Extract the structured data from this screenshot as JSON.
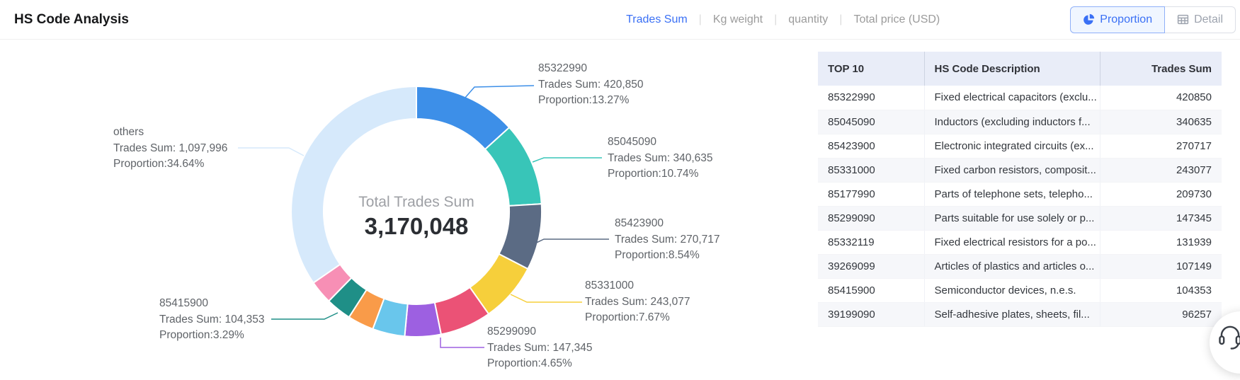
{
  "header": {
    "title": "HS Code Analysis",
    "metrics": [
      {
        "label": "Trades Sum",
        "active": true
      },
      {
        "label": "Kg weight",
        "active": false
      },
      {
        "label": "quantity",
        "active": false
      },
      {
        "label": "Total price (USD)",
        "active": false
      }
    ],
    "view_toggle": {
      "proportion_label": "Proportion",
      "detail_label": "Detail"
    }
  },
  "colors": {
    "accent_blue": "#3A70F5",
    "proportion_btn_bg": "#F0F6FF",
    "proportion_btn_border": "#8FB0F8",
    "inactive_gray": "#9B9B9B",
    "table_header_bg": "#E9EDF8"
  },
  "chart_data": {
    "type": "pie",
    "subtype": "donut",
    "center_label": "Total Trades Sum",
    "center_value": "3,170,048",
    "total": 3170048,
    "legend_position": "none",
    "segments": [
      {
        "code": "85322990",
        "value": 420850,
        "pct": "13.27%",
        "color": "#3D8FE8"
      },
      {
        "code": "85045090",
        "value": 340635,
        "pct": "10.74%",
        "color": "#38C5B8"
      },
      {
        "code": "85423900",
        "value": 270717,
        "pct": "8.54%",
        "color": "#5B6B84"
      },
      {
        "code": "85331000",
        "value": 243077,
        "pct": "7.67%",
        "color": "#F6CF3B"
      },
      {
        "code": "85177990",
        "value": 209730,
        "pct": "6.62%",
        "color": "#EB5276"
      },
      {
        "code": "85299090",
        "value": 147345,
        "pct": "4.65%",
        "color": "#9D60E1"
      },
      {
        "code": "85332119",
        "value": 131939,
        "pct": "4.16%",
        "color": "#69C6EC"
      },
      {
        "code": "39269099",
        "value": 107149,
        "pct": "3.38%",
        "color": "#F99B49"
      },
      {
        "code": "85415900",
        "value": 104353,
        "pct": "3.29%",
        "color": "#1F8F87"
      },
      {
        "code": "39199090",
        "value": 96257,
        "pct": "3.04%",
        "color": "#F78FB5"
      },
      {
        "code": "others",
        "value": 1097996,
        "pct": "34.64%",
        "color": "#D6E9FB"
      }
    ],
    "callouts": [
      {
        "code": "85322990",
        "title": "85322990",
        "line2": "Trades Sum: 420,850",
        "line3": "Proportion:13.27%"
      },
      {
        "code": "85045090",
        "title": "85045090",
        "line2": "Trades Sum: 340,635",
        "line3": "Proportion:10.74%"
      },
      {
        "code": "85423900",
        "title": "85423900",
        "line2": "Trades Sum: 270,717",
        "line3": "Proportion:8.54%"
      },
      {
        "code": "85331000",
        "title": "85331000",
        "line2": "Trades Sum: 243,077",
        "line3": "Proportion:7.67%"
      },
      {
        "code": "85299090",
        "title": "85299090",
        "line2": "Trades Sum: 147,345",
        "line3": "Proportion:4.65%"
      },
      {
        "code": "85415900",
        "title": "85415900",
        "line2": "Trades Sum: 104,353",
        "line3": "Proportion:3.29%"
      },
      {
        "code": "others",
        "title": "others",
        "line2": "Trades Sum: 1,097,996",
        "line3": "Proportion:34.64%"
      }
    ]
  },
  "table": {
    "columns": [
      "TOP 10",
      "HS Code Description",
      "Trades Sum"
    ],
    "rows": [
      [
        "85322990",
        "Fixed electrical capacitors (exclu...",
        "420850"
      ],
      [
        "85045090",
        "Inductors (excluding inductors f...",
        "340635"
      ],
      [
        "85423900",
        "Electronic integrated circuits (ex...",
        "270717"
      ],
      [
        "85331000",
        "Fixed carbon resistors, composit...",
        "243077"
      ],
      [
        "85177990",
        "Parts of telephone sets, telepho...",
        "209730"
      ],
      [
        "85299090",
        "Parts suitable for use solely or p...",
        "147345"
      ],
      [
        "85332119",
        "Fixed electrical resistors for a po...",
        "131939"
      ],
      [
        "39269099",
        "Articles of plastics and articles o...",
        "107149"
      ],
      [
        "85415900",
        "Semiconductor devices, n.e.s.",
        "104353"
      ],
      [
        "39199090",
        "Self-adhesive plates, sheets, fil...",
        "96257"
      ]
    ]
  }
}
